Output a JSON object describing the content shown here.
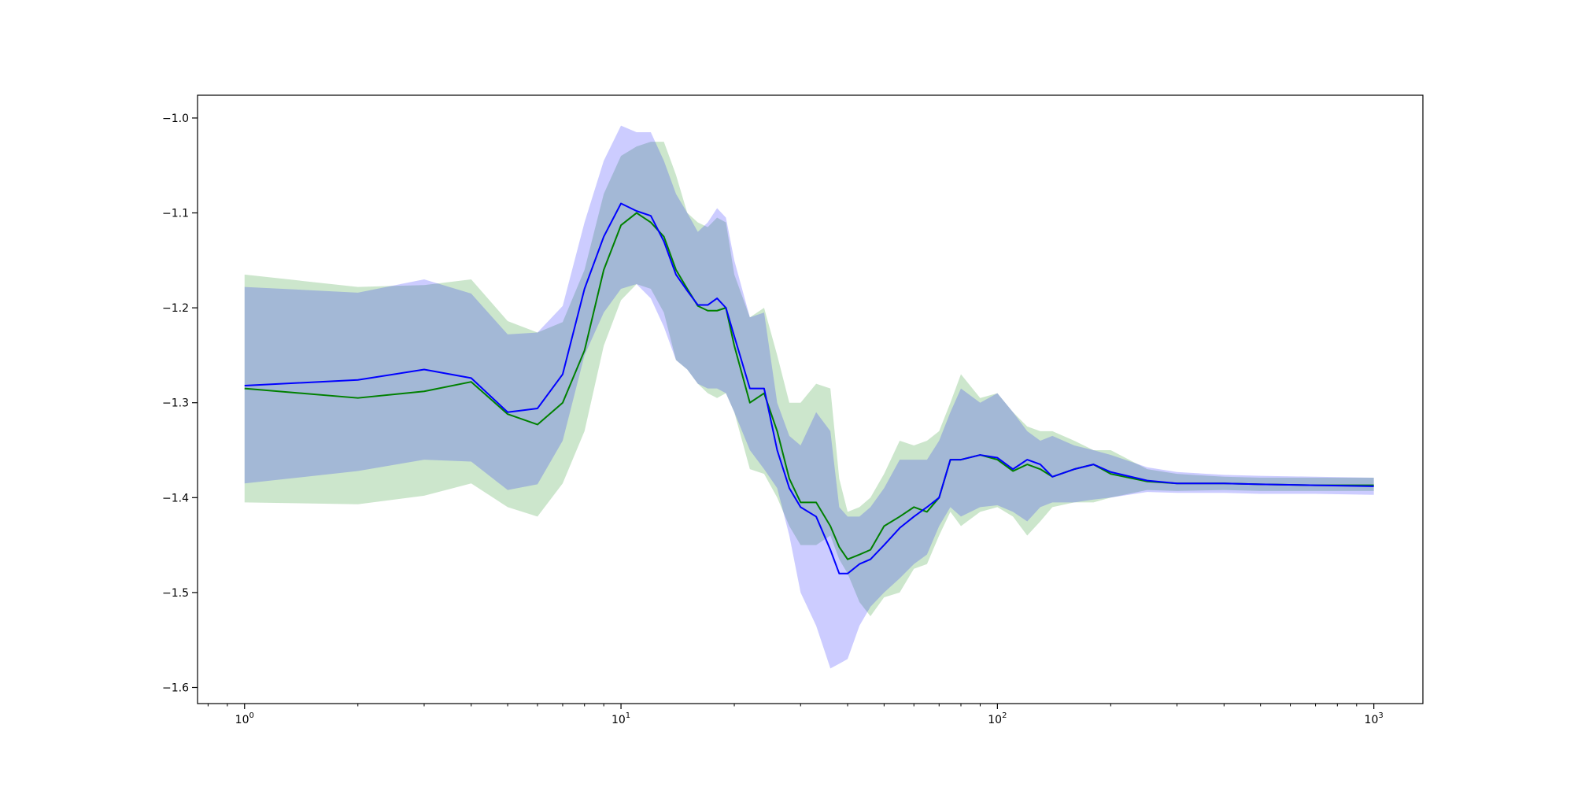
{
  "chart_data": {
    "type": "line",
    "title": "",
    "xlabel": "",
    "ylabel": "",
    "xscale": "log",
    "xlim": [
      0.75,
      1350
    ],
    "ylim": [
      -1.617,
      -0.976
    ],
    "grid": false,
    "legend": "none",
    "x_ticks": [
      {
        "base": "10",
        "exp": "0",
        "value": 1
      },
      {
        "base": "10",
        "exp": "1",
        "value": 10
      },
      {
        "base": "10",
        "exp": "2",
        "value": 100
      },
      {
        "base": "10",
        "exp": "3",
        "value": 1000
      }
    ],
    "y_ticks": [
      {
        "label": "−1.0",
        "value": -1.0
      },
      {
        "label": "−1.1",
        "value": -1.1
      },
      {
        "label": "−1.2",
        "value": -1.2
      },
      {
        "label": "−1.3",
        "value": -1.3
      },
      {
        "label": "−1.4",
        "value": -1.4
      },
      {
        "label": "−1.5",
        "value": -1.5
      },
      {
        "label": "−1.6",
        "value": -1.6
      }
    ],
    "series": [
      {
        "color": "#008000",
        "band_color": "#008000",
        "band_opacity": 0.2,
        "x": [
          1,
          2,
          3,
          4,
          5,
          6,
          7,
          8,
          9,
          10,
          11,
          12,
          13,
          14,
          15,
          16,
          17,
          18,
          19,
          20,
          22,
          24,
          26,
          28,
          30,
          33,
          36,
          38,
          40,
          43,
          46,
          50,
          55,
          60,
          65,
          70,
          75,
          80,
          90,
          100,
          110,
          120,
          130,
          140,
          160,
          180,
          200,
          250,
          300,
          400,
          500,
          700,
          1000
        ],
        "mean": [
          -1.285,
          -1.295,
          -1.288,
          -1.278,
          -1.312,
          -1.323,
          -1.3,
          -1.245,
          -1.16,
          -1.113,
          -1.1,
          -1.11,
          -1.125,
          -1.16,
          -1.18,
          -1.198,
          -1.203,
          -1.203,
          -1.2,
          -1.24,
          -1.3,
          -1.29,
          -1.33,
          -1.38,
          -1.405,
          -1.405,
          -1.43,
          -1.452,
          -1.465,
          -1.46,
          -1.455,
          -1.43,
          -1.42,
          -1.41,
          -1.415,
          -1.4,
          -1.36,
          -1.36,
          -1.355,
          -1.36,
          -1.372,
          -1.365,
          -1.37,
          -1.378,
          -1.37,
          -1.365,
          -1.375,
          -1.383,
          -1.385,
          -1.385,
          -1.386,
          -1.387,
          -1.387
        ],
        "lower": [
          -1.405,
          -1.407,
          -1.398,
          -1.385,
          -1.41,
          -1.42,
          -1.385,
          -1.33,
          -1.24,
          -1.192,
          -1.175,
          -1.18,
          -1.205,
          -1.255,
          -1.265,
          -1.28,
          -1.29,
          -1.295,
          -1.29,
          -1.31,
          -1.37,
          -1.375,
          -1.4,
          -1.43,
          -1.45,
          -1.45,
          -1.44,
          -1.465,
          -1.48,
          -1.51,
          -1.525,
          -1.505,
          -1.5,
          -1.475,
          -1.47,
          -1.44,
          -1.415,
          -1.43,
          -1.415,
          -1.41,
          -1.42,
          -1.44,
          -1.425,
          -1.41,
          -1.405,
          -1.405,
          -1.4,
          -1.392,
          -1.393,
          -1.392,
          -1.393,
          -1.393,
          -1.393
        ],
        "upper": [
          -1.165,
          -1.178,
          -1.176,
          -1.17,
          -1.214,
          -1.226,
          -1.215,
          -1.16,
          -1.08,
          -1.04,
          -1.03,
          -1.025,
          -1.025,
          -1.06,
          -1.1,
          -1.11,
          -1.115,
          -1.105,
          -1.11,
          -1.165,
          -1.21,
          -1.2,
          -1.25,
          -1.3,
          -1.3,
          -1.28,
          -1.285,
          -1.38,
          -1.415,
          -1.41,
          -1.4,
          -1.375,
          -1.34,
          -1.345,
          -1.34,
          -1.33,
          -1.3,
          -1.27,
          -1.295,
          -1.29,
          -1.31,
          -1.325,
          -1.33,
          -1.33,
          -1.34,
          -1.35,
          -1.35,
          -1.37,
          -1.375,
          -1.378,
          -1.379,
          -1.379,
          -1.379
        ]
      },
      {
        "color": "#0000ff",
        "band_color": "#0000ff",
        "band_opacity": 0.2,
        "x": [
          1,
          2,
          3,
          4,
          5,
          6,
          7,
          8,
          9,
          10,
          11,
          12,
          13,
          14,
          15,
          16,
          17,
          18,
          19,
          20,
          22,
          24,
          26,
          28,
          30,
          33,
          36,
          38,
          40,
          43,
          46,
          50,
          55,
          60,
          65,
          70,
          75,
          80,
          90,
          100,
          110,
          120,
          130,
          140,
          160,
          180,
          200,
          250,
          300,
          400,
          500,
          700,
          1000
        ],
        "mean": [
          -1.282,
          -1.276,
          -1.265,
          -1.274,
          -1.31,
          -1.306,
          -1.27,
          -1.18,
          -1.125,
          -1.09,
          -1.098,
          -1.103,
          -1.13,
          -1.165,
          -1.182,
          -1.197,
          -1.197,
          -1.19,
          -1.2,
          -1.23,
          -1.285,
          -1.285,
          -1.35,
          -1.39,
          -1.41,
          -1.42,
          -1.455,
          -1.48,
          -1.48,
          -1.47,
          -1.465,
          -1.45,
          -1.432,
          -1.42,
          -1.41,
          -1.4,
          -1.36,
          -1.36,
          -1.355,
          -1.358,
          -1.37,
          -1.36,
          -1.365,
          -1.378,
          -1.37,
          -1.365,
          -1.373,
          -1.382,
          -1.385,
          -1.385,
          -1.386,
          -1.387,
          -1.388
        ],
        "lower": [
          -1.385,
          -1.372,
          -1.36,
          -1.362,
          -1.392,
          -1.386,
          -1.34,
          -1.25,
          -1.205,
          -1.18,
          -1.175,
          -1.19,
          -1.22,
          -1.255,
          -1.265,
          -1.28,
          -1.285,
          -1.285,
          -1.29,
          -1.31,
          -1.35,
          -1.37,
          -1.39,
          -1.44,
          -1.5,
          -1.535,
          -1.58,
          -1.575,
          -1.57,
          -1.535,
          -1.515,
          -1.5,
          -1.485,
          -1.47,
          -1.46,
          -1.43,
          -1.41,
          -1.42,
          -1.41,
          -1.408,
          -1.415,
          -1.425,
          -1.41,
          -1.405,
          -1.405,
          -1.402,
          -1.4,
          -1.394,
          -1.395,
          -1.395,
          -1.396,
          -1.396,
          -1.397
        ],
        "upper": [
          -1.178,
          -1.184,
          -1.17,
          -1.185,
          -1.228,
          -1.226,
          -1.198,
          -1.11,
          -1.045,
          -1.008,
          -1.015,
          -1.015,
          -1.045,
          -1.08,
          -1.1,
          -1.12,
          -1.11,
          -1.095,
          -1.105,
          -1.15,
          -1.21,
          -1.205,
          -1.3,
          -1.335,
          -1.345,
          -1.31,
          -1.33,
          -1.41,
          -1.42,
          -1.42,
          -1.41,
          -1.39,
          -1.36,
          -1.36,
          -1.36,
          -1.34,
          -1.31,
          -1.285,
          -1.3,
          -1.29,
          -1.31,
          -1.33,
          -1.34,
          -1.335,
          -1.345,
          -1.35,
          -1.355,
          -1.368,
          -1.373,
          -1.376,
          -1.377,
          -1.378,
          -1.379
        ]
      }
    ]
  }
}
